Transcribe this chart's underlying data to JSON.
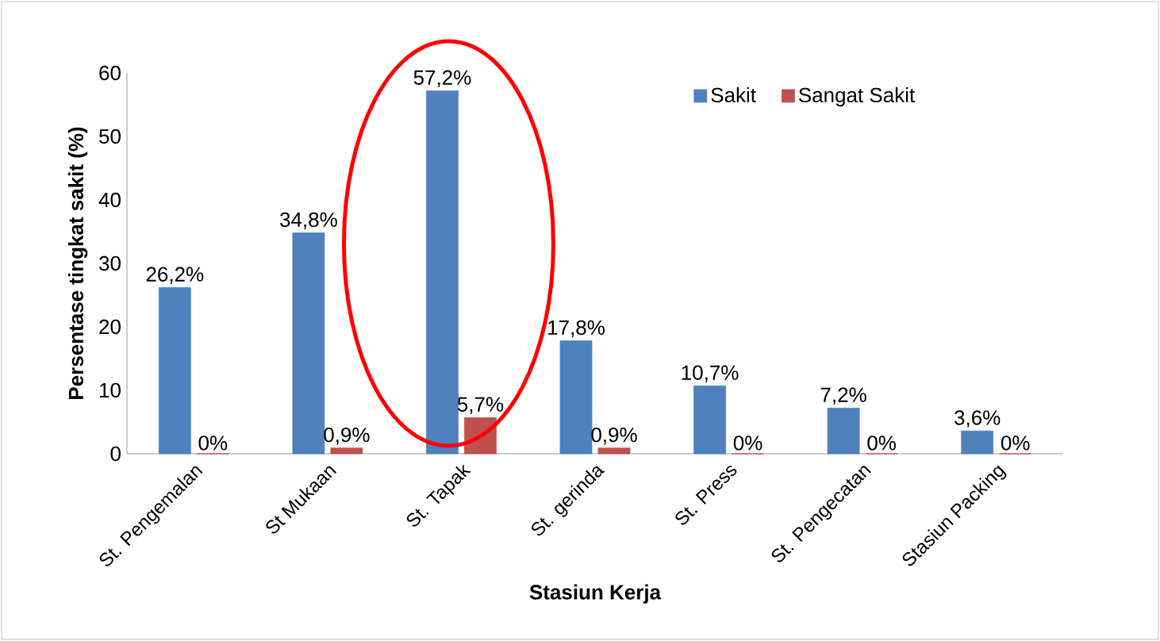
{
  "chart_data": {
    "type": "bar",
    "xlabel": "Stasiun Kerja",
    "ylabel": "Persentase tingkat sakit (%)",
    "categories": [
      "St. Pengemalan",
      "St Mukaan",
      "St. Tapak",
      "St. gerinda",
      "St. Press",
      "St. Pengecatan",
      "Stasiun Packing"
    ],
    "series": [
      {
        "name": "Sakit",
        "color": "#4f81bd",
        "values": [
          26.2,
          34.8,
          57.2,
          17.8,
          10.7,
          7.2,
          3.6
        ],
        "value_labels": [
          "26,2%",
          "34,8%",
          "57,2%",
          "17,8%",
          "10,7%",
          "7,2%",
          "3,6%"
        ]
      },
      {
        "name": "Sangat Sakit",
        "color": "#c0504d",
        "values": [
          0,
          0.9,
          5.7,
          0.9,
          0,
          0,
          0
        ],
        "value_labels": [
          "0%",
          "0,9%",
          "5,7%",
          "0,9%",
          "0%",
          "0%",
          "0%"
        ]
      }
    ],
    "ylim": [
      0,
      60
    ],
    "yticks": [
      0,
      10,
      20,
      30,
      40,
      50,
      60
    ],
    "grid": false,
    "legend": "top right"
  }
}
